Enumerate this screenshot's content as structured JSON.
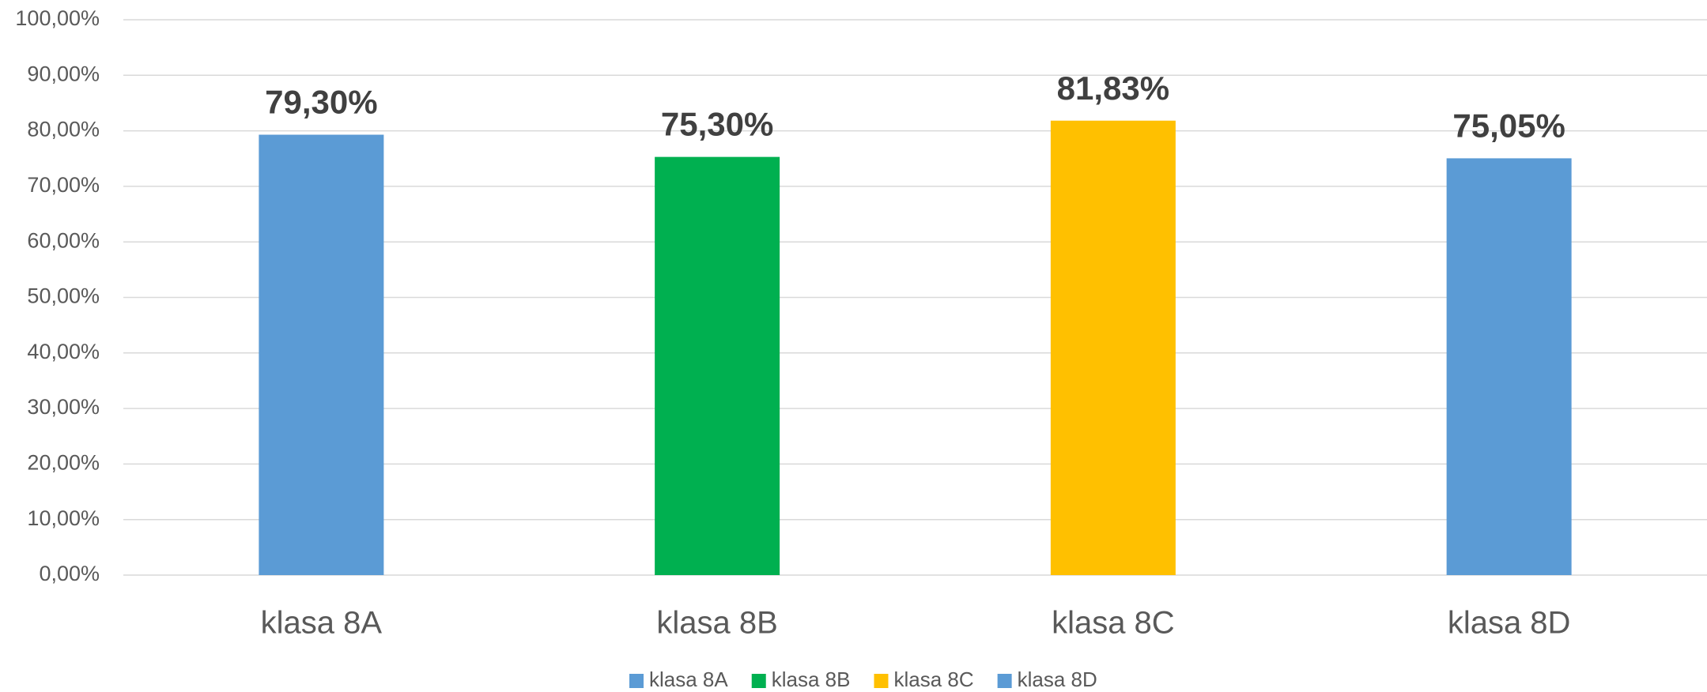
{
  "chart_data": {
    "type": "bar",
    "categories": [
      "klasa 8A",
      "klasa 8B",
      "klasa 8C",
      "klasa 8D"
    ],
    "values": [
      79.3,
      75.3,
      81.83,
      75.05
    ],
    "value_labels": [
      "79,30%",
      "75,30%",
      "81,83%",
      "75,05%"
    ],
    "colors": [
      "#5b9bd5",
      "#00b050",
      "#ffc000",
      "#5b9bd5"
    ],
    "ylim": [
      0,
      100
    ],
    "yticks": [
      {
        "value": 0,
        "label": "0,00%"
      },
      {
        "value": 10,
        "label": "10,00%"
      },
      {
        "value": 20,
        "label": "20,00%"
      },
      {
        "value": 30,
        "label": "30,00%"
      },
      {
        "value": 40,
        "label": "40,00%"
      },
      {
        "value": 50,
        "label": "50,00%"
      },
      {
        "value": 60,
        "label": "60,00%"
      },
      {
        "value": 70,
        "label": "70,00%"
      },
      {
        "value": 80,
        "label": "80,00%"
      },
      {
        "value": 90,
        "label": "90,00%"
      },
      {
        "value": 100,
        "label": "100,00%"
      }
    ],
    "grid": true,
    "legend": "bottom"
  }
}
